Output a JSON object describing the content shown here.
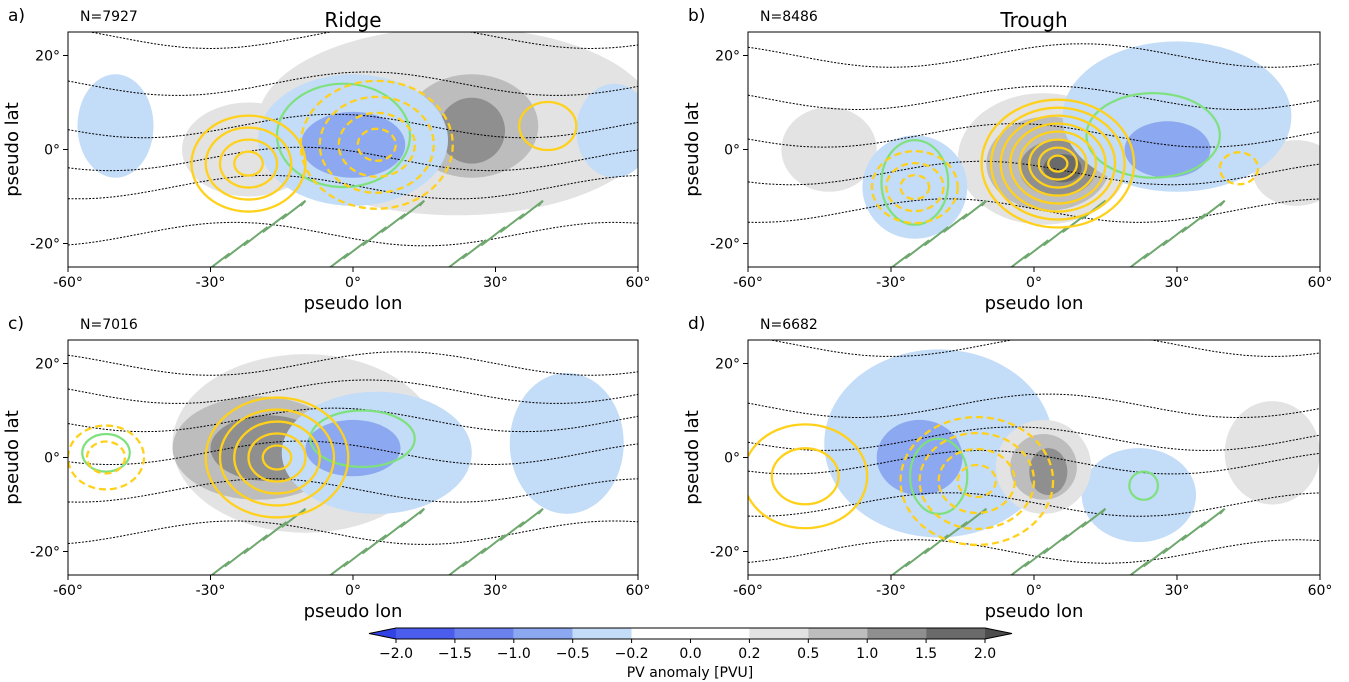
{
  "colorbar": {
    "label": "PV anomaly [PVU]",
    "ticks": [
      "−2.0",
      "−1.5",
      "−1.0",
      "−0.5",
      "−0.2",
      "0.0",
      "0.2",
      "0.5",
      "1.0",
      "1.5",
      "2.0"
    ],
    "colors": [
      "#4a5ded",
      "#6b82ee",
      "#8ca8f0",
      "#c3dcf7",
      "#ffffff",
      "#ffffff",
      "#e3e3e3",
      "#bdbdbd",
      "#8f8f8f",
      "#6a6a6a"
    ],
    "under_color": "#3243e6",
    "over_color": "#4d4d4d"
  },
  "axes": {
    "xlabel": "pseudo lon",
    "ylabel": "pseudo lat",
    "xticks": [
      "-60°",
      "-30°",
      "0°",
      "30°",
      "60°"
    ],
    "yticks": [
      "20°",
      "0°",
      "-20°"
    ]
  },
  "colors": {
    "gold_contour": "#ffd11a",
    "green_light": "#7ee17e",
    "green_dark": "#6ea86e",
    "streamline": "#000000"
  },
  "chart_data": [
    {
      "type": "contour",
      "panel": "a)",
      "title": "Ridge",
      "n_label": "N=7927",
      "xlim": [
        -60,
        60
      ],
      "ylim": [
        -25,
        25
      ],
      "streamlines_lat": [
        24,
        14,
        5,
        -2,
        -8,
        -18
      ],
      "pv_blobs": [
        {
          "lon": 22,
          "lat": 6,
          "rlon": 42,
          "rlat": 20,
          "level": 0.2
        },
        {
          "lon": -22,
          "lat": 0,
          "rlon": 14,
          "rlat": 10,
          "level": 0.2
        },
        {
          "lon": 25,
          "lat": 5,
          "rlon": 14,
          "rlat": 11,
          "level": 0.5
        },
        {
          "lon": 25,
          "lat": 4,
          "rlon": 7,
          "rlat": 7,
          "level": 1.0
        },
        {
          "lon": 0,
          "lat": 2,
          "rlon": 20,
          "rlat": 14,
          "level": -0.2
        },
        {
          "lon": 0,
          "lat": 2,
          "rlon": 16,
          "rlat": 10,
          "level": -0.5
        },
        {
          "lon": 0,
          "lat": 1,
          "rlon": 11,
          "rlat": 7,
          "level": -1.0
        },
        {
          "lon": -50,
          "lat": 5,
          "rlon": 8,
          "rlat": 11,
          "level": -0.2
        },
        {
          "lon": 55,
          "lat": 4,
          "rlon": 8,
          "rlat": 10,
          "level": -0.2
        }
      ],
      "gold_solid": [
        {
          "lon": -22,
          "lat": -3,
          "radii": [
            3,
            6,
            9,
            12
          ]
        },
        {
          "lon": 41,
          "lat": 5,
          "radii": [
            6
          ]
        }
      ],
      "gold_dashed": [
        {
          "lon": 5,
          "lat": 1,
          "radii": [
            4,
            8,
            12,
            16
          ]
        }
      ],
      "green_light": [
        {
          "lon": -2,
          "lat": 3,
          "rlon": 14,
          "rlat": 11
        }
      ]
    },
    {
      "type": "contour",
      "panel": "b)",
      "title": "Trough",
      "n_label": "N=8486",
      "xlim": [
        -60,
        60
      ],
      "ylim": [
        -25,
        25
      ],
      "streamlines_lat": [
        20,
        11,
        3,
        -5,
        -13
      ],
      "pv_blobs": [
        {
          "lon": -43,
          "lat": 0,
          "rlon": 10,
          "rlat": 9,
          "level": 0.2
        },
        {
          "lon": 55,
          "lat": -5,
          "rlon": 9,
          "rlat": 7,
          "level": 0.2
        },
        {
          "lon": 2,
          "lat": -2,
          "rlon": 18,
          "rlat": 14,
          "level": 0.2
        },
        {
          "lon": 3,
          "lat": -3,
          "rlon": 13,
          "rlat": 10,
          "level": 0.5
        },
        {
          "lon": 5,
          "lat": -4,
          "rlon": 8,
          "rlat": 6,
          "level": 1.0
        },
        {
          "lon": 6,
          "lat": -4,
          "rlon": 4,
          "rlat": 3,
          "level": 1.5
        },
        {
          "lon": 30,
          "lat": 7,
          "rlon": 24,
          "rlat": 16,
          "level": -0.2
        },
        {
          "lon": 30,
          "lat": 5,
          "rlon": 15,
          "rlat": 10,
          "level": -0.5
        },
        {
          "lon": 28,
          "lat": 0,
          "rlon": 9,
          "rlat": 6,
          "level": -1.0
        },
        {
          "lon": -25,
          "lat": -8,
          "rlon": 11,
          "rlat": 11,
          "level": -0.2
        },
        {
          "lon": -25,
          "lat": -8,
          "rlon": 7,
          "rlat": 7,
          "level": -0.5
        }
      ],
      "gold_solid": [
        {
          "lon": 5,
          "lat": -3,
          "radii": [
            2,
            4,
            6,
            8,
            10,
            12,
            14,
            16
          ]
        }
      ],
      "gold_dashed": [
        {
          "lon": -25,
          "lat": -8,
          "radii": [
            3,
            6,
            9
          ]
        },
        {
          "lon": 43,
          "lat": -4,
          "radii": [
            4
          ]
        }
      ],
      "green_light": [
        {
          "lon": -25,
          "lat": -7,
          "rlon": 7,
          "rlat": 9
        },
        {
          "lon": 25,
          "lat": 3,
          "rlon": 14,
          "rlat": 9
        }
      ]
    },
    {
      "type": "contour",
      "panel": "c)",
      "title": "",
      "n_label": "N=7016",
      "xlim": [
        -60,
        60
      ],
      "ylim": [
        -25,
        25
      ],
      "streamlines_lat": [
        20,
        14,
        8,
        1,
        -7,
        -16
      ],
      "pv_blobs": [
        {
          "lon": 45,
          "lat": 3,
          "rlon": 12,
          "rlat": 15,
          "level": -0.2
        },
        {
          "lon": -10,
          "lat": 3,
          "rlon": 28,
          "rlat": 19,
          "level": 0.2
        },
        {
          "lon": -20,
          "lat": 2,
          "rlon": 18,
          "rlat": 11,
          "level": 0.5
        },
        {
          "lon": -18,
          "lat": 2,
          "rlon": 12,
          "rlat": 7,
          "level": 1.0
        },
        {
          "lon": 5,
          "lat": 1,
          "rlon": 20,
          "rlat": 13,
          "level": -0.2
        },
        {
          "lon": 2,
          "lat": 1,
          "rlon": 15,
          "rlat": 9,
          "level": -0.5
        },
        {
          "lon": 0,
          "lat": 2,
          "rlon": 10,
          "rlat": 6,
          "level": -1.0
        }
      ],
      "gold_solid": [
        {
          "lon": -16,
          "lat": 0,
          "radii": [
            3,
            6,
            9,
            12,
            15
          ]
        }
      ],
      "gold_dashed": [
        {
          "lon": -52,
          "lat": 0,
          "radii": [
            4,
            8
          ]
        }
      ],
      "green_light": [
        {
          "lon": 2,
          "lat": 4,
          "rlon": 11,
          "rlat": 6
        },
        {
          "lon": -52,
          "lat": 1,
          "rlon": 5,
          "rlat": 4
        }
      ]
    },
    {
      "type": "contour",
      "panel": "d)",
      "title": "",
      "n_label": "N=6682",
      "xlim": [
        -60,
        60
      ],
      "ylim": [
        -25,
        25
      ],
      "streamlines_lat": [
        24,
        11,
        4,
        -1,
        -10,
        -20
      ],
      "pv_blobs": [
        {
          "lon": -20,
          "lat": 3,
          "rlon": 24,
          "rlat": 20,
          "level": -0.2
        },
        {
          "lon": -20,
          "lat": 1,
          "rlon": 16,
          "rlat": 13,
          "level": -0.5
        },
        {
          "lon": -24,
          "lat": 0,
          "rlon": 9,
          "rlat": 8,
          "level": -1.0
        },
        {
          "lon": 22,
          "lat": -8,
          "rlon": 12,
          "rlat": 10,
          "level": -0.2
        },
        {
          "lon": 21,
          "lat": -9,
          "rlon": 7,
          "rlat": 6,
          "level": -0.5
        },
        {
          "lon": 2,
          "lat": -2,
          "rlon": 10,
          "rlat": 10,
          "level": 0.2
        },
        {
          "lon": 2,
          "lat": -2,
          "rlon": 7,
          "rlat": 7,
          "level": 0.5
        },
        {
          "lon": 3,
          "lat": -3,
          "rlon": 4,
          "rlat": 5,
          "level": 1.0
        },
        {
          "lon": 50,
          "lat": 1,
          "rlon": 10,
          "rlat": 11,
          "level": 0.2
        }
      ],
      "gold_solid": [
        {
          "lon": -48,
          "lat": -4,
          "radii": [
            7,
            13
          ]
        }
      ],
      "gold_dashed": [
        {
          "lon": -12,
          "lat": -5,
          "radii": [
            4,
            8,
            12,
            16
          ]
        }
      ],
      "green_light": [
        {
          "lon": -20,
          "lat": -4,
          "rlon": 6,
          "rlat": 8
        },
        {
          "lon": 23,
          "lat": -6,
          "rlon": 3,
          "rlat": 3
        }
      ]
    }
  ]
}
